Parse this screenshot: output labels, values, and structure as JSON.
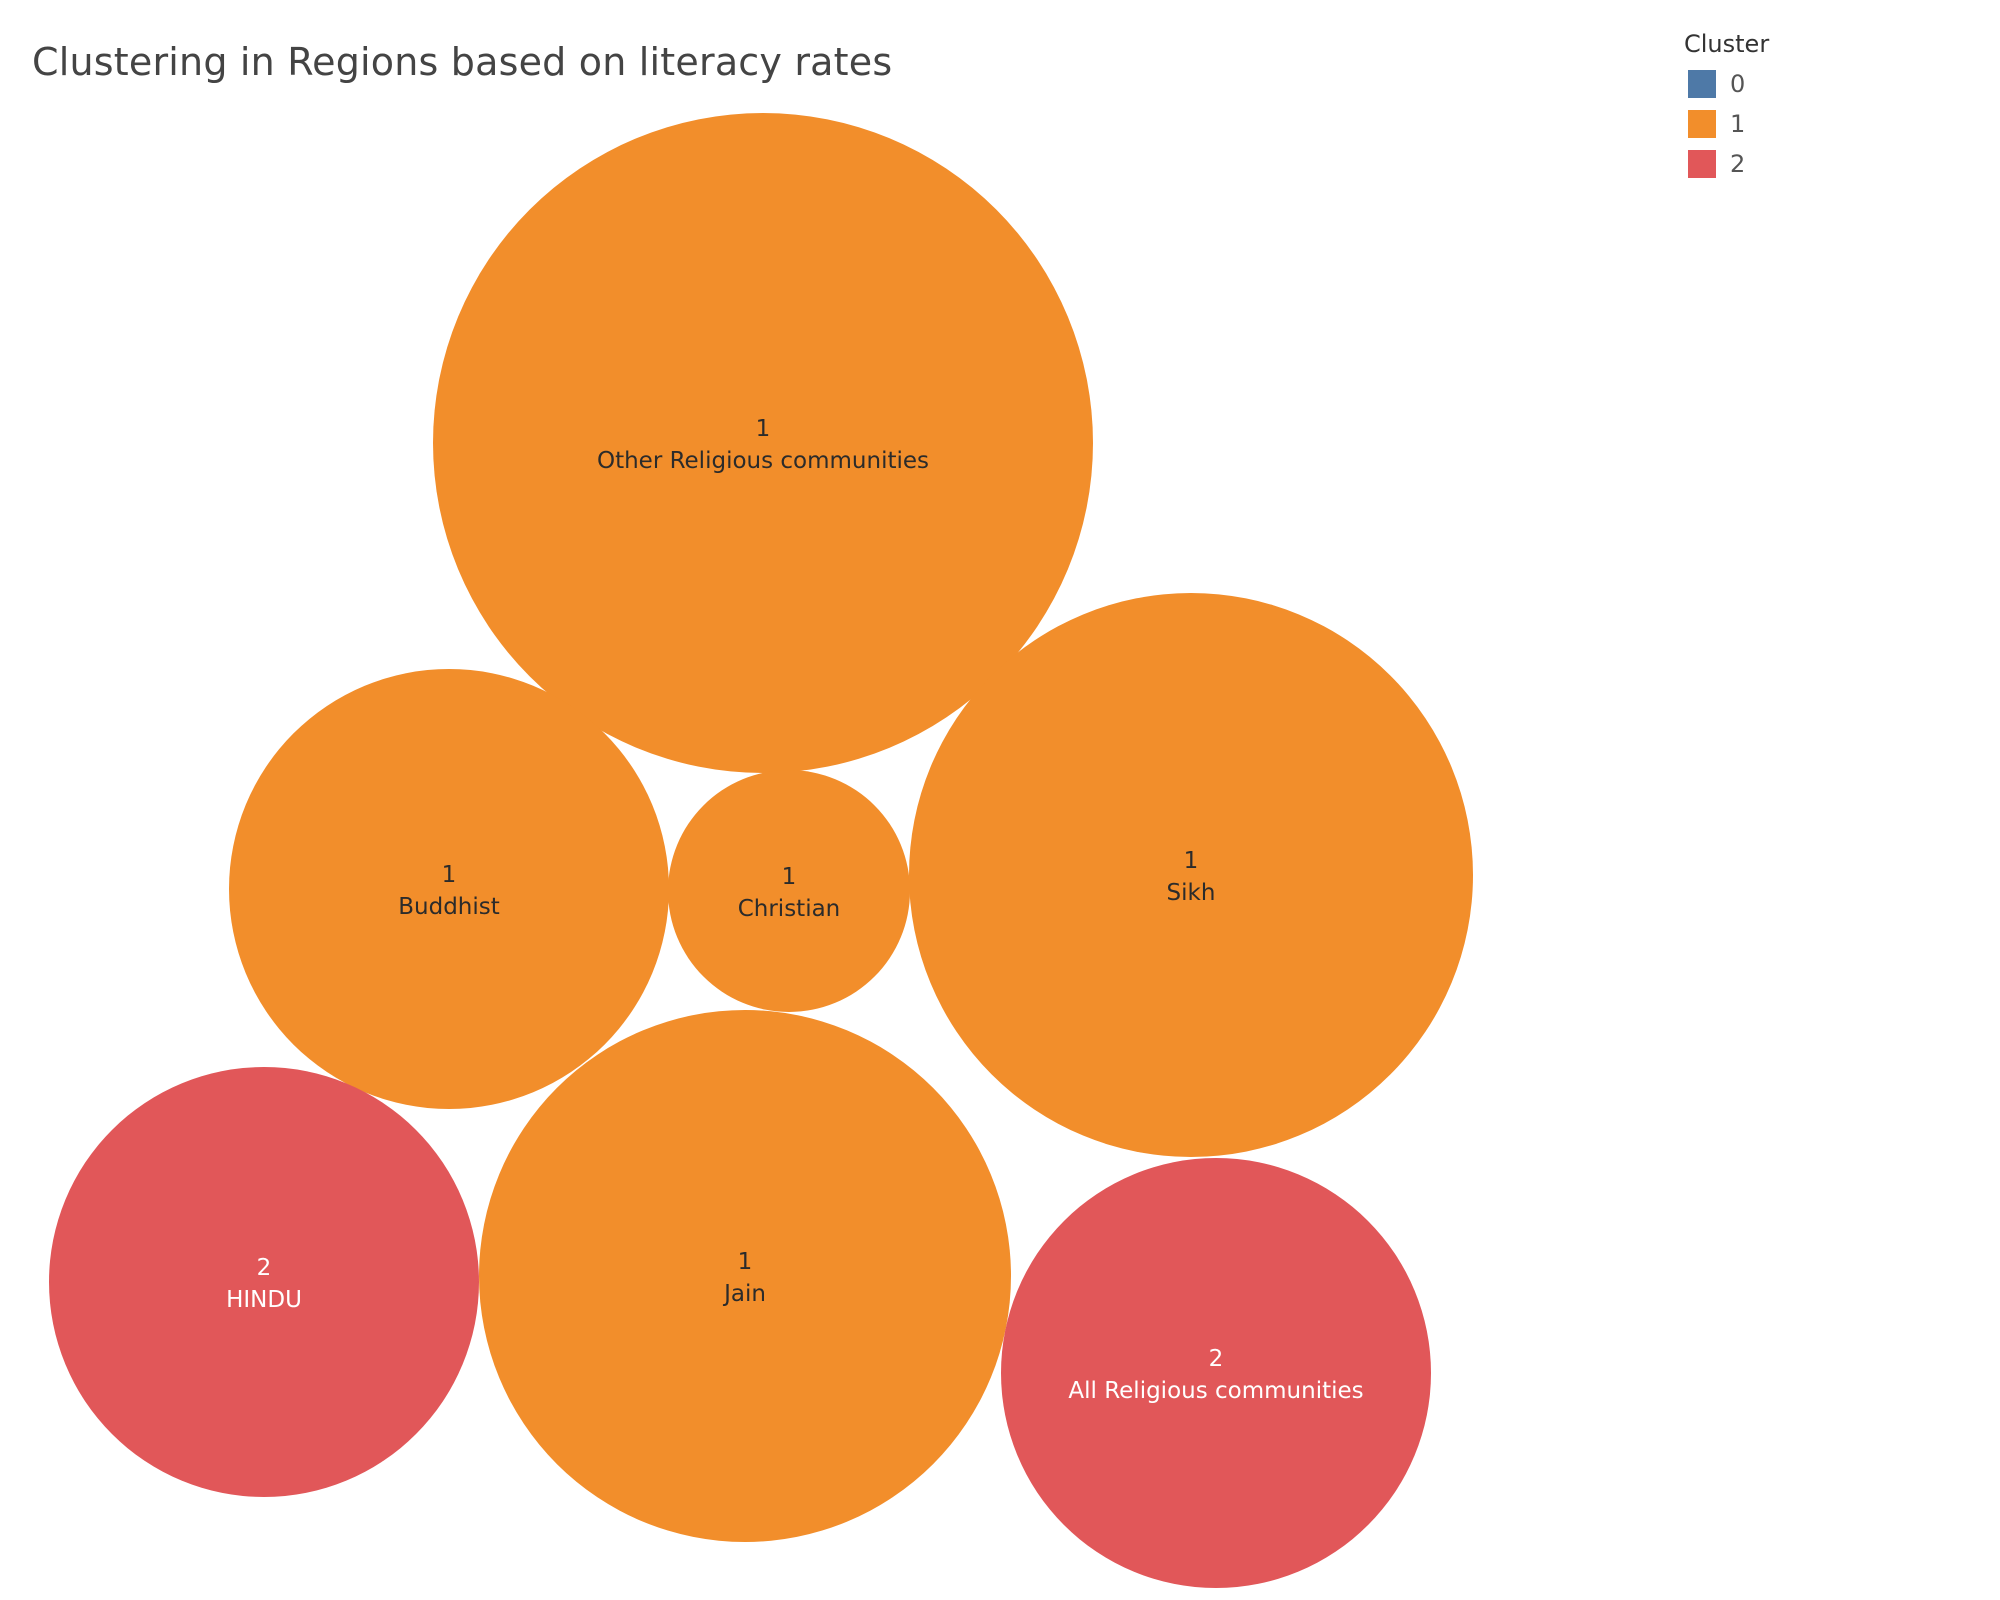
{
  "chart_data": {
    "type": "bubble",
    "title": "Clustering in Regions based on literacy rates",
    "legend": {
      "title": "Cluster",
      "position": "top-right",
      "items": [
        {
          "label": "0",
          "color": "#4e79a7"
        },
        {
          "label": "1",
          "color": "#f28e2b"
        },
        {
          "label": "2",
          "color": "#e15759"
        }
      ]
    },
    "bubbles": [
      {
        "category": "Other Religious communities",
        "cluster": "1"
      },
      {
        "category": "Sikh",
        "cluster": "1"
      },
      {
        "category": "Jain",
        "cluster": "1"
      },
      {
        "category": "Buddhist",
        "cluster": "1"
      },
      {
        "category": "All Religious communities",
        "cluster": "2"
      },
      {
        "category": "HINDU",
        "cluster": "2"
      },
      {
        "category": "Christian",
        "cluster": "1"
      }
    ]
  }
}
